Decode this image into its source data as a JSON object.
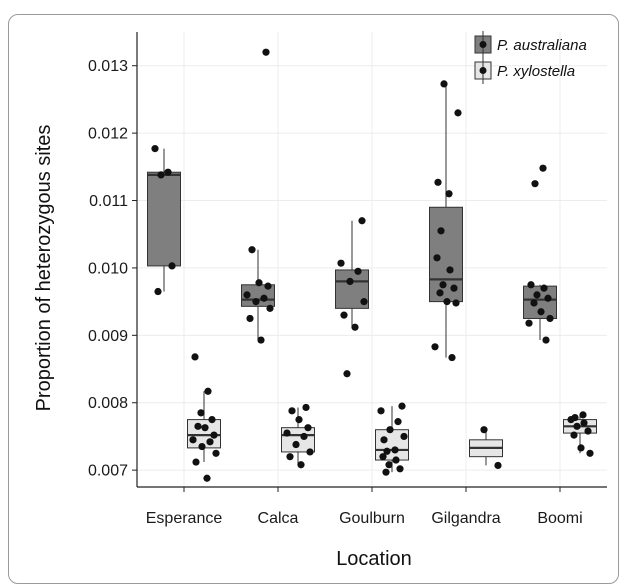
{
  "chart_data": {
    "type": "box",
    "xlabel": "Location",
    "ylabel": "Proportion of heterozygous sites",
    "categories": [
      "Esperance",
      "Calca",
      "Goulburn",
      "Gilgandra",
      "Boomi"
    ],
    "ylim": [
      0.00675,
      0.0135
    ],
    "yticks": [
      0.007,
      0.008,
      0.009,
      0.01,
      0.011,
      0.012,
      0.013
    ],
    "ytick_labels": [
      "0.007",
      "0.008",
      "0.009",
      "0.010",
      "0.011",
      "0.012",
      "0.013"
    ],
    "grid": true,
    "legend_position": "top-right",
    "series": [
      {
        "name": "P. australiana",
        "color": "#7f7f7f",
        "boxes": [
          {
            "category": "Esperance",
            "min": 0.00965,
            "q1": 0.01003,
            "median": 0.01138,
            "q3": 0.01142,
            "max": 0.01177,
            "points": [
              0.01177,
              0.01142,
              0.01138,
              0.01003,
              0.00965
            ]
          },
          {
            "category": "Calca",
            "min": 0.00893,
            "q1": 0.00943,
            "median": 0.00953,
            "q3": 0.00975,
            "max": 0.01027,
            "outliers": [
              0.0132
            ],
            "points": [
              0.0132,
              0.01027,
              0.00978,
              0.00973,
              0.0096,
              0.00955,
              0.0095,
              0.0094,
              0.00925,
              0.00893
            ]
          },
          {
            "category": "Goulburn",
            "min": 0.00912,
            "q1": 0.0094,
            "median": 0.0098,
            "q3": 0.00997,
            "max": 0.0107,
            "outliers": [
              0.00843
            ],
            "points": [
              0.0107,
              0.01007,
              0.00995,
              0.0098,
              0.0095,
              0.0093,
              0.00912,
              0.00843
            ]
          },
          {
            "category": "Gilgandra",
            "min": 0.00867,
            "q1": 0.0095,
            "median": 0.00983,
            "q3": 0.0109,
            "max": 0.01273,
            "points": [
              0.01273,
              0.0123,
              0.01127,
              0.0111,
              0.01055,
              0.01015,
              0.00997,
              0.00975,
              0.0097,
              0.00963,
              0.0095,
              0.00948,
              0.00883,
              0.00867
            ]
          },
          {
            "category": "Boomi",
            "min": 0.00893,
            "q1": 0.00925,
            "median": 0.00953,
            "q3": 0.00973,
            "max": 0.00975,
            "outliers": [
              0.01125,
              0.01148
            ],
            "points": [
              0.01148,
              0.01125,
              0.00975,
              0.0097,
              0.0096,
              0.00955,
              0.00948,
              0.00935,
              0.00925,
              0.00918,
              0.00893
            ]
          }
        ]
      },
      {
        "name": "P. xylostella",
        "color": "#e6e6e6",
        "boxes": [
          {
            "category": "Esperance",
            "min": 0.00712,
            "q1": 0.00733,
            "median": 0.00752,
            "q3": 0.00775,
            "max": 0.00817,
            "outliers": [
              0.00868,
              0.00688
            ],
            "points": [
              0.00868,
              0.00817,
              0.00785,
              0.00775,
              0.00765,
              0.00763,
              0.00752,
              0.00745,
              0.00742,
              0.00735,
              0.00725,
              0.00712,
              0.00688
            ]
          },
          {
            "category": "Calca",
            "min": 0.00708,
            "q1": 0.00727,
            "median": 0.00752,
            "q3": 0.00763,
            "max": 0.00793,
            "points": [
              0.00793,
              0.00788,
              0.00775,
              0.00763,
              0.00755,
              0.0075,
              0.00738,
              0.00727,
              0.0072,
              0.00708
            ]
          },
          {
            "category": "Goulburn",
            "min": 0.00697,
            "q1": 0.00715,
            "median": 0.0073,
            "q3": 0.0076,
            "max": 0.00795,
            "points": [
              0.00795,
              0.00788,
              0.00772,
              0.0076,
              0.0075,
              0.00745,
              0.0073,
              0.00728,
              0.0072,
              0.00715,
              0.00708,
              0.00702,
              0.00697
            ]
          },
          {
            "category": "Gilgandra",
            "min": 0.00707,
            "q1": 0.0072,
            "median": 0.00733,
            "q3": 0.00745,
            "max": 0.0076,
            "points": [
              0.0076,
              0.00707
            ]
          },
          {
            "category": "Boomi",
            "min": 0.00725,
            "q1": 0.00755,
            "median": 0.00765,
            "q3": 0.00775,
            "max": 0.00782,
            "points": [
              0.00782,
              0.00778,
              0.00775,
              0.0077,
              0.00765,
              0.00758,
              0.00752,
              0.00733,
              0.00725
            ]
          }
        ]
      }
    ]
  }
}
